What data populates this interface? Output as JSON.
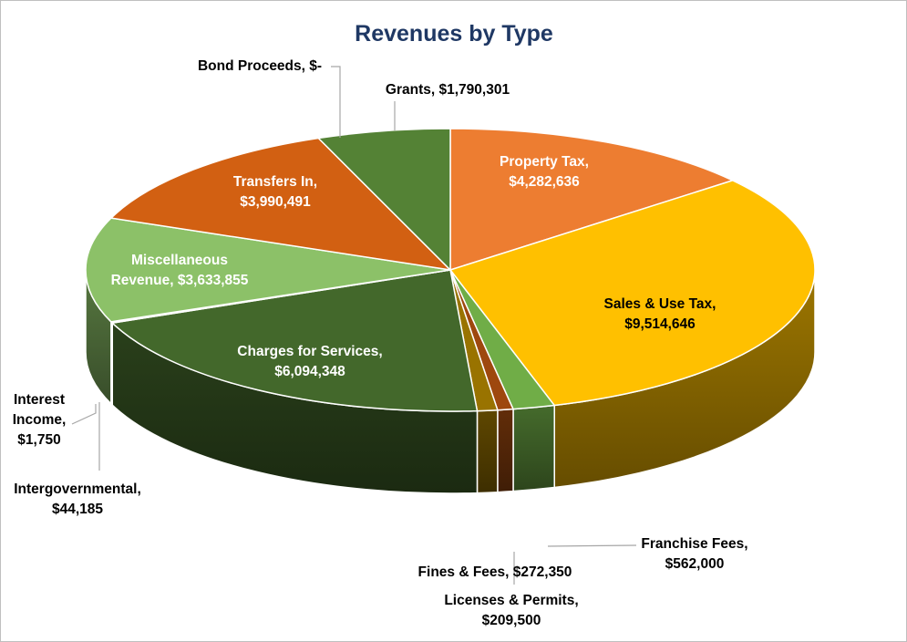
{
  "chart_data": {
    "type": "pie",
    "style": "3d",
    "title": "Revenues by Type",
    "slices": [
      {
        "name": "Property Tax",
        "value": 4282636,
        "value_label": "$4,282,636",
        "color": "#ed7d31",
        "label_lines": [
          "Property Tax,",
          "$4,282,636"
        ]
      },
      {
        "name": "Sales & Use Tax",
        "value": 9514646,
        "value_label": "$9,514,646",
        "color": "#ffc000",
        "label_lines": [
          "Sales & Use Tax,",
          "$9,514,646"
        ]
      },
      {
        "name": "Franchise Fees",
        "value": 562000,
        "value_label": "$562,000",
        "color": "#70ad47",
        "label_lines": [
          "Franchise Fees,",
          "$562,000"
        ]
      },
      {
        "name": "Licenses & Permits",
        "value": 209500,
        "value_label": "$209,500",
        "color": "#9e480e",
        "label_lines": [
          "Licenses & Permits,",
          "$209,500"
        ]
      },
      {
        "name": "Fines & Fees",
        "value": 272350,
        "value_label": "$272,350",
        "color": "#997300",
        "label_lines": [
          "Fines & Fees,  $272,350"
        ]
      },
      {
        "name": "Charges for Services",
        "value": 6094348,
        "value_label": "$6,094,348",
        "color": "#43682b",
        "label_lines": [
          "Charges for Services,",
          "$6,094,348"
        ]
      },
      {
        "name": "Intergovernmental",
        "value": 44185,
        "value_label": "$44,185",
        "color": "#698ed0",
        "label_lines": [
          "Intergovernmental,",
          "$44,185"
        ]
      },
      {
        "name": "Interest Income",
        "value": 1750,
        "value_label": "$1,750",
        "color": "#f1975a",
        "label_lines": [
          "Interest",
          "Income,",
          "$1,750"
        ]
      },
      {
        "name": "Miscellaneous Revenue",
        "value": 3633855,
        "value_label": "$3,633,855",
        "color": "#8cc168",
        "label_lines": [
          "Miscellaneous",
          "Revenue,  $3,633,855"
        ]
      },
      {
        "name": "Transfers In",
        "value": 3990491,
        "value_label": "$3,990,491",
        "color": "#d26012",
        "label_lines": [
          "Transfers In,",
          "$3,990,491"
        ]
      },
      {
        "name": "Bond Proceeds",
        "value": 0,
        "value_label": "$-",
        "color": "#ffcd33",
        "label_lines": [
          "Bond Proceeds,  $-"
        ]
      },
      {
        "name": "Grants",
        "value": 1790301,
        "value_label": "$1,790,301",
        "color": "#548235",
        "label_lines": [
          "Grants,  $1,790,301"
        ]
      }
    ]
  }
}
